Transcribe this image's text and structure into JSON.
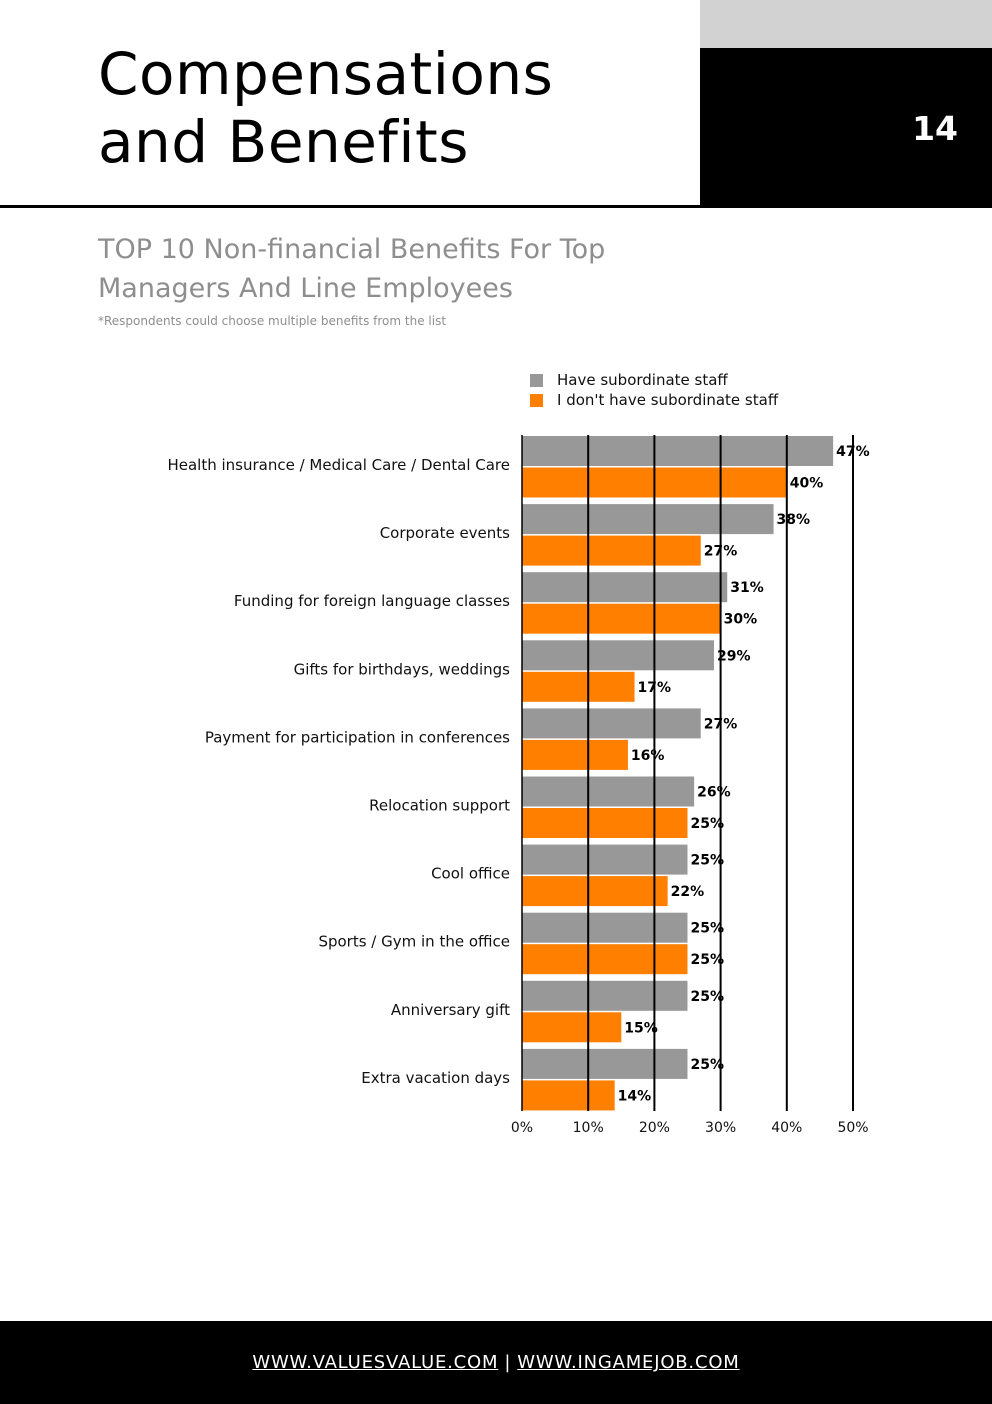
{
  "header": {
    "title_line1": "Compensations",
    "title_line2": "and Benefits",
    "page_number": "14",
    "accent_colors": {
      "gray_block": "#d2d2d2",
      "black_block": "#000000"
    }
  },
  "chart_data": {
    "type": "bar",
    "orientation": "horizontal",
    "title": "TOP 10 Non-financial Benefits For Top Managers And Line Employees",
    "note": "*Respondents could choose multiple benefits from the list",
    "categories": [
      "Health insurance / Medical Care / Dental Care",
      "Corporate events",
      "Funding for foreign language classes",
      "Gifts for birthdays, weddings",
      "Payment for participation in conferences",
      "Relocation support",
      "Cool office",
      "Sports / Gym in the office",
      "Anniversary gift",
      "Extra vacation days"
    ],
    "series": [
      {
        "name": "Have subordinate staff",
        "color": "#989898",
        "values": [
          47,
          38,
          31,
          29,
          27,
          26,
          25,
          25,
          25,
          25
        ]
      },
      {
        "name": "I don't have subordinate staff",
        "color": "#ff7f00",
        "values": [
          40,
          27,
          30,
          17,
          16,
          25,
          22,
          25,
          15,
          14
        ]
      }
    ],
    "value_suffix": "%",
    "xlim": [
      0,
      50
    ],
    "xticks": [
      "0%",
      "10%",
      "20%",
      "30%",
      "40%",
      "50%"
    ],
    "grid": true,
    "legend_position": "top-right"
  },
  "footer": {
    "link1": "WWW.VALUESVALUE.COM",
    "separator": "|",
    "link2": "WWW.INGAMEJOB.COM"
  }
}
